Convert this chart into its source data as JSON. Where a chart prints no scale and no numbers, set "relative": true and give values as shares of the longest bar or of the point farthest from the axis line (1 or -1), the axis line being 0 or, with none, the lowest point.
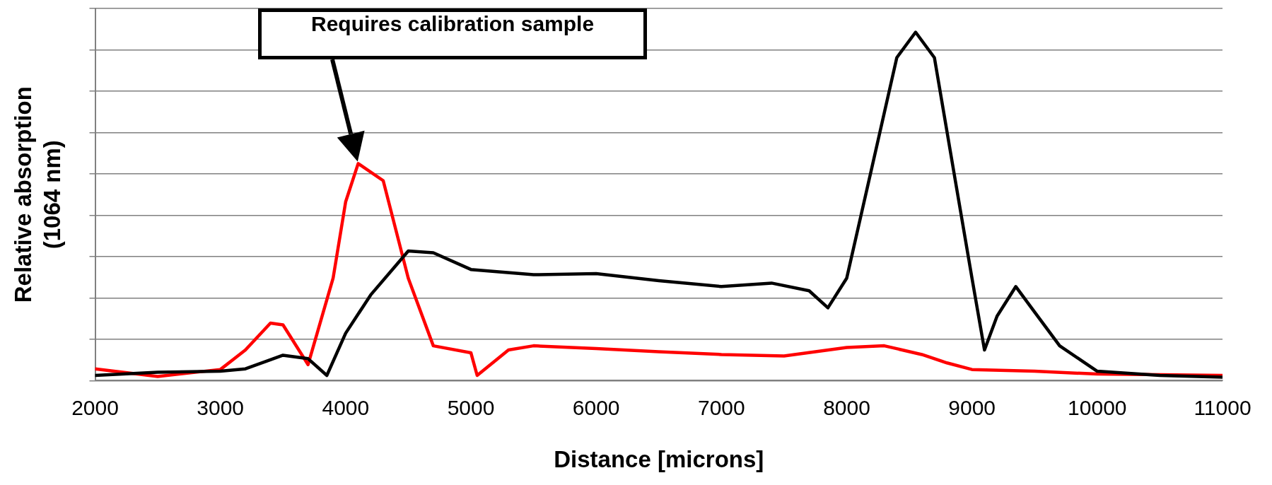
{
  "chart_data": {
    "type": "line",
    "relative": true,
    "xlabel": "Distance [microns]",
    "ylabel": "Relative absorption\n(1064 nm)",
    "xlim": [
      2000,
      11000
    ],
    "xticks": [
      2000,
      3000,
      4000,
      5000,
      6000,
      7000,
      8000,
      9000,
      10000,
      11000
    ],
    "grid": "y",
    "legend": false,
    "marker": "none",
    "line_style": "solid",
    "annotations": [
      "Requires calibration sample"
    ],
    "series": [
      {
        "color": "#000000",
        "x": [
          2000,
          2500,
          3000,
          3200,
          3500,
          3700,
          3850,
          4000,
          4200,
          4400,
          4500,
          4700,
          5000,
          5500,
          6000,
          6500,
          7000,
          7400,
          7700,
          7850,
          8000,
          8200,
          8400,
          8550,
          8700,
          8850,
          9000,
          9100,
          9200,
          9350,
          9500,
          9700,
          10000,
          10500,
          11000
        ],
        "values": [
          0.015,
          0.024,
          0.027,
          0.034,
          0.073,
          0.063,
          0.015,
          0.136,
          0.246,
          0.33,
          0.372,
          0.367,
          0.319,
          0.304,
          0.307,
          0.287,
          0.27,
          0.28,
          0.258,
          0.209,
          0.294,
          0.61,
          0.927,
          1.0,
          0.927,
          0.61,
          0.294,
          0.088,
          0.185,
          0.27,
          0.197,
          0.1,
          0.027,
          0.015,
          0.01
        ]
      },
      {
        "color": "#ff0000",
        "x": [
          2000,
          2500,
          3000,
          3200,
          3400,
          3500,
          3700,
          3900,
          4000,
          4100,
          4300,
          4500,
          4700,
          5000,
          5050,
          5300,
          5500,
          6000,
          6500,
          7000,
          7500,
          8000,
          8300,
          8600,
          8800,
          9000,
          9500,
          10000,
          11000
        ],
        "values": [
          0.034,
          0.012,
          0.032,
          0.088,
          0.165,
          0.16,
          0.046,
          0.294,
          0.513,
          0.623,
          0.574,
          0.294,
          0.1,
          0.08,
          0.015,
          0.088,
          0.1,
          0.092,
          0.083,
          0.075,
          0.071,
          0.095,
          0.1,
          0.075,
          0.051,
          0.032,
          0.027,
          0.019,
          0.015
        ]
      }
    ]
  }
}
